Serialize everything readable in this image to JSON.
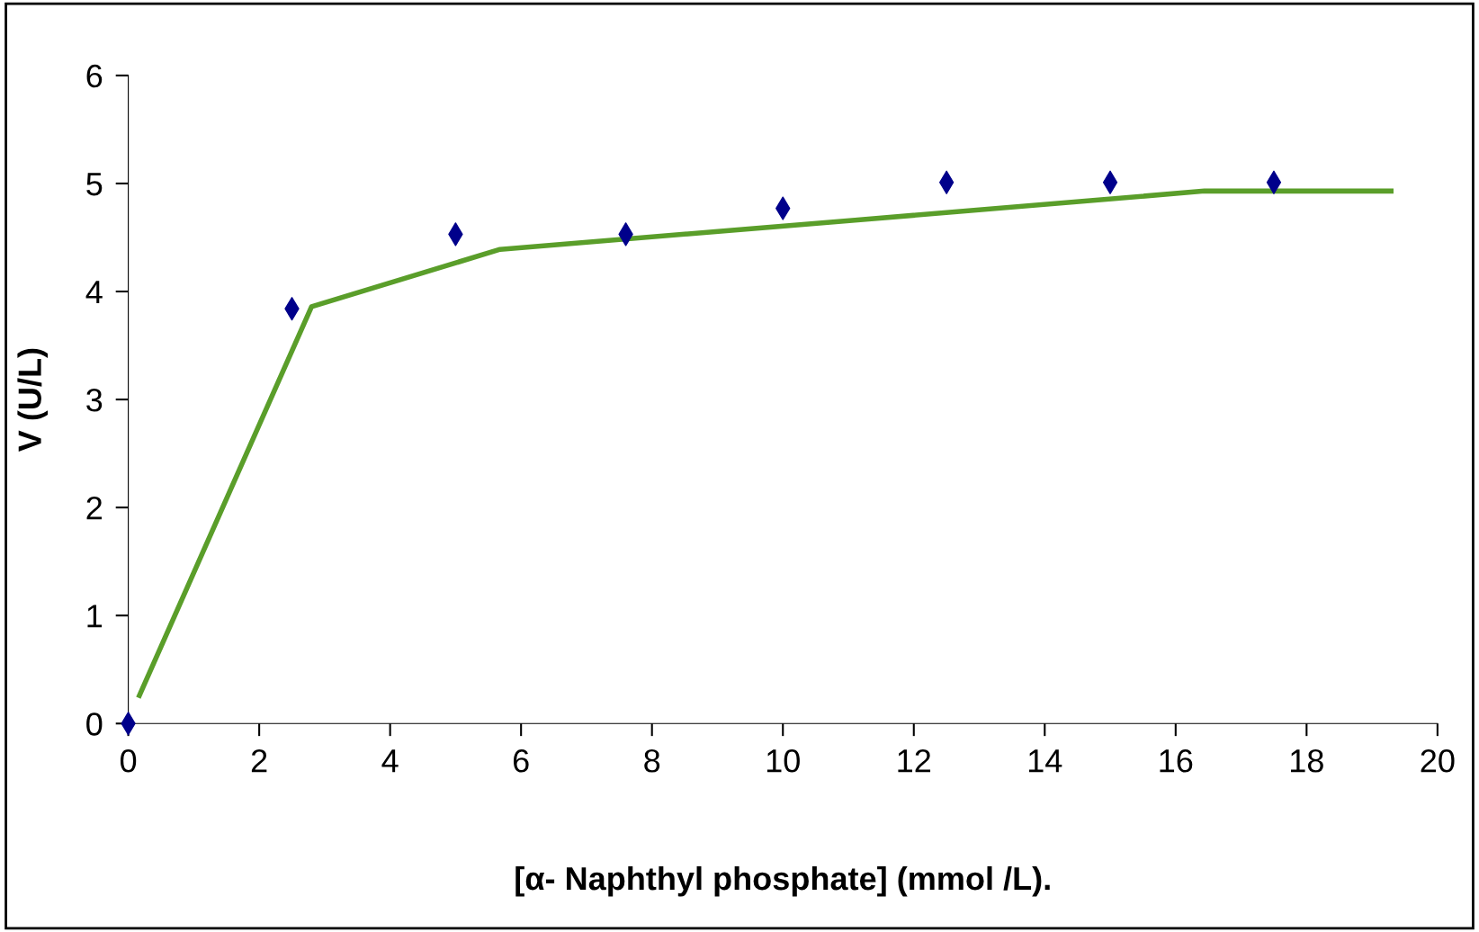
{
  "chart_data": {
    "type": "line",
    "xlabel": "[α- Naphthyl phosphate] (mmol /L).",
    "ylabel": "V (U/L)",
    "xlim": [
      0,
      20
    ],
    "ylim": [
      0,
      6
    ],
    "xticks": [
      0,
      2,
      4,
      6,
      8,
      10,
      12,
      14,
      16,
      18,
      20
    ],
    "yticks": [
      0,
      1,
      2,
      3,
      4,
      5,
      6
    ],
    "grid": false,
    "legend": false,
    "series": [
      {
        "type": "scatter",
        "marker": "diamond",
        "color": "#00008b",
        "x": [
          0,
          2.5,
          5,
          7.6,
          10,
          12.5,
          15,
          17.5
        ],
        "values": [
          0,
          3.84,
          4.53,
          4.53,
          4.77,
          5.01,
          5.01,
          5.01
        ]
      },
      {
        "marker": "none",
        "color": "#5a9e2a",
        "x": [
          0.17,
          2.8,
          5.68,
          11.1,
          16.44,
          19.29
        ],
        "values": [
          0.26,
          3.86,
          4.39,
          4.66,
          4.93,
          4.93
        ]
      }
    ]
  }
}
